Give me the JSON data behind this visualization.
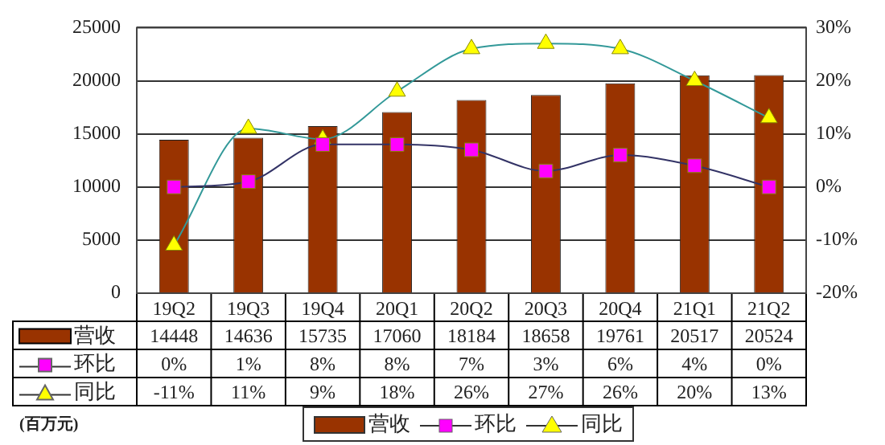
{
  "chart_data": {
    "type": "bar",
    "categories": [
      "19Q2",
      "19Q3",
      "19Q4",
      "20Q1",
      "20Q2",
      "20Q3",
      "20Q4",
      "21Q1",
      "21Q2"
    ],
    "series": [
      {
        "name": "营收",
        "color": "#993300",
        "values": [
          14448,
          14636,
          15735,
          17060,
          18184,
          18658,
          19761,
          20517,
          20524
        ],
        "value_labels": [
          "14448",
          "14636",
          "15735",
          "17060",
          "18184",
          "18658",
          "19761",
          "20517",
          "20524"
        ]
      },
      {
        "name": "环比",
        "type": "line",
        "axis": "y2",
        "marker": "square",
        "color": "#ff00ff",
        "values": [
          0,
          1,
          8,
          8,
          7,
          3,
          6,
          4,
          0
        ],
        "value_labels": [
          "0%",
          "1%",
          "8%",
          "8%",
          "7%",
          "3%",
          "6%",
          "4%",
          "0%"
        ]
      },
      {
        "name": "同比",
        "type": "line",
        "axis": "y2",
        "marker": "triangle",
        "color": "#ffff00",
        "values": [
          -11,
          11,
          9,
          18,
          26,
          27,
          26,
          20,
          13
        ],
        "value_labels": [
          "-11%",
          "11%",
          "9%",
          "18%",
          "26%",
          "27%",
          "26%",
          "20%",
          "13%"
        ]
      }
    ],
    "ylim": [
      0,
      25000
    ],
    "yticks": [
      0,
      5000,
      10000,
      15000,
      20000,
      25000
    ],
    "y2lim": [
      -20,
      30
    ],
    "y2ticks": [
      {
        "value": -20,
        "label": "-20%"
      },
      {
        "value": -10,
        "label": "-10%"
      },
      {
        "value": 0,
        "label": "0%"
      },
      {
        "value": 10,
        "label": "10%"
      },
      {
        "value": 20,
        "label": "20%"
      },
      {
        "value": 30,
        "label": "30%"
      }
    ],
    "grid": "y",
    "legend": "bottom",
    "annotations": [
      "(百万元)"
    ]
  }
}
